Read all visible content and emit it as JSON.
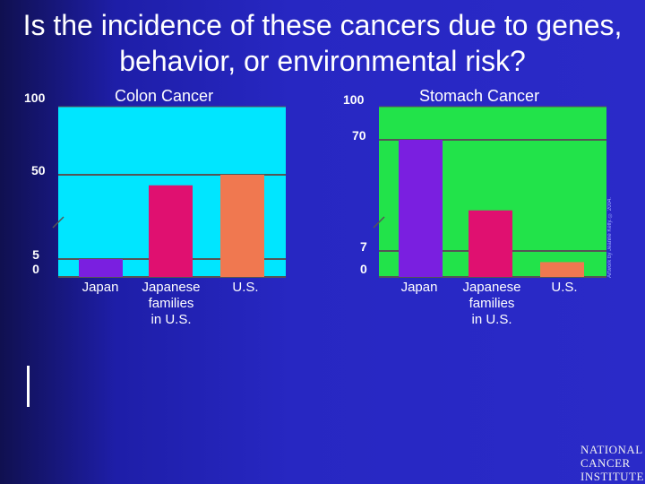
{
  "slide": {
    "title": "Is the incidence of these cancers due to genes, behavior, or environmental risk?",
    "credit": "Artwork by Jeanne Kelly. © 2004.",
    "logo_lines": [
      "NATIONAL",
      "CANCER",
      "INSTITUTE"
    ]
  },
  "chart_data": [
    {
      "type": "bar",
      "title": "Colon Cancer",
      "categories": [
        "Japan",
        "Japanese\nfamilies\nin U.S.",
        "U.S."
      ],
      "values": [
        2,
        44,
        50
      ],
      "ylim": [
        0,
        100
      ],
      "axis_ticks": [
        {
          "label": "100",
          "value": 100
        },
        {
          "label": "50",
          "value": 50
        },
        {
          "label": "5\n0",
          "value": 0
        }
      ],
      "colors": [
        "#7a1fe0",
        "#e01070",
        "#f07850"
      ],
      "background": "#00e6ff",
      "grid": "horizontal lines",
      "axis_break": true
    },
    {
      "type": "bar",
      "title": "Stomach Cancer",
      "categories": [
        "Japan",
        "Japanese\nfamilies\nin U.S.",
        "U.S."
      ],
      "values": [
        70,
        30,
        4
      ],
      "ylim": [
        0,
        100
      ],
      "axis_ticks": [
        {
          "label": "100",
          "value": 100
        },
        {
          "label": "70",
          "value": 70
        },
        {
          "label": "7",
          "value": 7
        },
        {
          "label": "0",
          "value": 0
        }
      ],
      "colors": [
        "#7a1fe0",
        "#e01070",
        "#f07850"
      ],
      "background": "#22e34a",
      "grid": "horizontal lines",
      "axis_break": true
    }
  ]
}
